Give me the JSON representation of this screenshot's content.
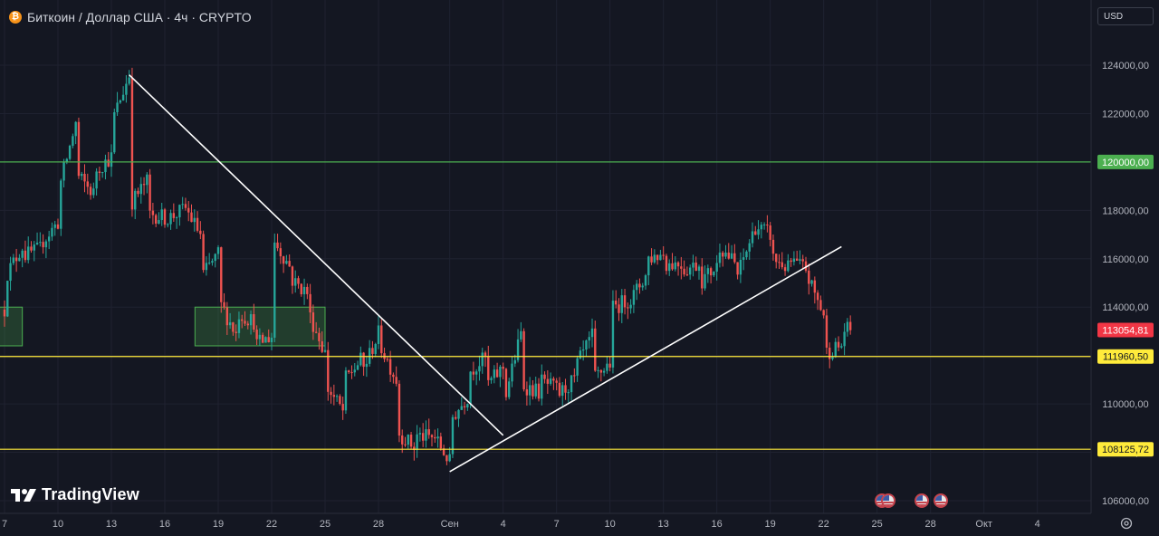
{
  "header": {
    "coin_symbol": "₿",
    "title": "Биткоин / Доллар США · 4ч · CRYPTO"
  },
  "toolbar": {
    "currency": "USD"
  },
  "branding": {
    "logo_text": "TradingView"
  },
  "icons": [
    "bitcoin-icon",
    "tradingview-logo-icon",
    "settings-gear-icon",
    "us-flag-event-icon"
  ],
  "colors": {
    "background": "#141722",
    "up": "#26a69a",
    "down": "#ef5350",
    "resistance_line": "#4caf50",
    "support_line": "#ffeb3b",
    "current_price_tag": "#f23645",
    "trend_line": "#ffffff"
  },
  "chart_data": {
    "type": "candlestick",
    "symbol": "BTCUSD",
    "interval": "4ч",
    "title": "Биткоин / Доллар США · 4ч · CRYPTO",
    "y_ticks": [
      106000,
      108000,
      110000,
      112000,
      114000,
      116000,
      118000,
      120000,
      122000,
      124000
    ],
    "y_tick_labels": [
      "106000,00",
      "108000,00",
      "110000,00",
      "112000,00",
      "114000,00",
      "116000,00",
      "118000,00",
      "120000,00",
      "122000,00",
      "124000,00"
    ],
    "ylim": [
      105500,
      126500
    ],
    "x_tick_labels": [
      "7",
      "10",
      "13",
      "16",
      "19",
      "22",
      "25",
      "28",
      "Сен",
      "4",
      "7",
      "10",
      "13",
      "16",
      "19",
      "22",
      "25",
      "28",
      "Окт",
      "4"
    ],
    "x_tick_dates": [
      "2025-08-07",
      "2025-08-10",
      "2025-08-13",
      "2025-08-16",
      "2025-08-19",
      "2025-08-22",
      "2025-08-25",
      "2025-08-28",
      "2025-09-01",
      "2025-09-04",
      "2025-09-07",
      "2025-09-10",
      "2025-09-13",
      "2025-09-16",
      "2025-09-19",
      "2025-09-22",
      "2025-09-25",
      "2025-09-28",
      "2025-10-01",
      "2025-10-04"
    ],
    "xlim": [
      "2025-08-07",
      "2025-10-06"
    ],
    "path_points": [
      [
        "2025-08-07",
        113900
      ],
      [
        "2025-08-07",
        115200
      ],
      [
        "2025-08-08",
        116500
      ],
      [
        "2025-08-08",
        116100
      ],
      [
        "2025-08-09",
        116400
      ],
      [
        "2025-08-09",
        116600
      ],
      [
        "2025-08-10",
        117500
      ],
      [
        "2025-08-10",
        118700
      ],
      [
        "2025-08-11",
        121600
      ],
      [
        "2025-08-11",
        119500
      ],
      [
        "2025-08-12",
        118700
      ],
      [
        "2025-08-12",
        119600
      ],
      [
        "2025-08-13",
        120200
      ],
      [
        "2025-08-13",
        121600
      ],
      [
        "2025-08-14",
        123600
      ],
      [
        "2025-08-14",
        121800
      ],
      [
        "2025-08-14",
        118200
      ],
      [
        "2025-08-15",
        119200
      ],
      [
        "2025-08-15",
        117900
      ],
      [
        "2025-08-16",
        117700
      ],
      [
        "2025-08-16",
        117600
      ],
      [
        "2025-08-17",
        118000
      ],
      [
        "2025-08-17",
        118300
      ],
      [
        "2025-08-18",
        117000
      ],
      [
        "2025-08-18",
        115200
      ],
      [
        "2025-08-19",
        116200
      ],
      [
        "2025-08-19",
        114300
      ],
      [
        "2025-08-20",
        112900
      ],
      [
        "2025-08-20",
        113800
      ],
      [
        "2025-08-21",
        113400
      ],
      [
        "2025-08-21",
        112400
      ],
      [
        "2025-08-22",
        112800
      ],
      [
        "2025-08-22",
        116900
      ],
      [
        "2025-08-23",
        115700
      ],
      [
        "2025-08-23",
        115200
      ],
      [
        "2025-08-24",
        114600
      ],
      [
        "2025-08-24",
        113900
      ],
      [
        "2025-08-25",
        112100
      ],
      [
        "2025-08-25",
        110800
      ],
      [
        "2025-08-26",
        109700
      ],
      [
        "2025-08-26",
        110900
      ],
      [
        "2025-08-27",
        111800
      ],
      [
        "2025-08-27",
        111200
      ],
      [
        "2025-08-28",
        112900
      ],
      [
        "2025-08-28",
        112600
      ],
      [
        "2025-08-29",
        111000
      ],
      [
        "2025-08-29",
        108900
      ],
      [
        "2025-08-30",
        108200
      ],
      [
        "2025-08-30",
        108700
      ],
      [
        "2025-08-31",
        108600
      ],
      [
        "2025-08-31",
        108800
      ],
      [
        "2025-09-01",
        107600
      ],
      [
        "2025-09-01",
        109300
      ],
      [
        "2025-09-02",
        110300
      ],
      [
        "2025-09-02",
        111300
      ],
      [
        "2025-09-03",
        111900
      ],
      [
        "2025-09-03",
        110700
      ],
      [
        "2025-09-04",
        111500
      ],
      [
        "2025-09-04",
        110000
      ],
      [
        "2025-09-05",
        112900
      ],
      [
        "2025-09-05",
        110800
      ],
      [
        "2025-09-06",
        110500
      ],
      [
        "2025-09-06",
        111000
      ],
      [
        "2025-09-07",
        110600
      ],
      [
        "2025-09-07",
        110300
      ],
      [
        "2025-09-08",
        111000
      ],
      [
        "2025-09-08",
        111400
      ],
      [
        "2025-09-09",
        112800
      ],
      [
        "2025-09-09",
        111000
      ],
      [
        "2025-09-10",
        111700
      ],
      [
        "2025-09-10",
        113900
      ],
      [
        "2025-09-11",
        114300
      ],
      [
        "2025-09-11",
        114100
      ],
      [
        "2025-09-12",
        115300
      ],
      [
        "2025-09-12",
        116000
      ],
      [
        "2025-09-13",
        116200
      ],
      [
        "2025-09-13",
        115800
      ],
      [
        "2025-09-14",
        115800
      ],
      [
        "2025-09-14",
        115500
      ],
      [
        "2025-09-15",
        115800
      ],
      [
        "2025-09-15",
        115000
      ],
      [
        "2025-09-16",
        115700
      ],
      [
        "2025-09-16",
        116700
      ],
      [
        "2025-09-17",
        115800
      ],
      [
        "2025-09-17",
        115000
      ],
      [
        "2025-09-18",
        117000
      ],
      [
        "2025-09-18",
        117400
      ],
      [
        "2025-09-19",
        117000
      ],
      [
        "2025-09-19",
        116100
      ],
      [
        "2025-09-20",
        115600
      ],
      [
        "2025-09-20",
        115900
      ],
      [
        "2025-09-21",
        115600
      ],
      [
        "2025-09-21",
        115400
      ],
      [
        "2025-09-22",
        113700
      ],
      [
        "2025-09-22",
        112100
      ],
      [
        "2025-09-23",
        112400
      ],
      [
        "2025-09-23",
        113050
      ]
    ],
    "horizontal_levels": [
      {
        "price": 120000,
        "label": "120000,00",
        "color": "#4caf50"
      },
      {
        "price": 111960.5,
        "label": "111960,50",
        "color": "#ffeb3b"
      },
      {
        "price": 108125.72,
        "label": "108125,72",
        "color": "#ffeb3b"
      }
    ],
    "last_price": {
      "price": 113054.81,
      "label": "113054,81",
      "color": "#f23645"
    },
    "trend_lines": [
      {
        "from": [
          "2025-08-14",
          123600
        ],
        "to": [
          "2025-09-04",
          108700
        ]
      },
      {
        "from": [
          "2025-09-01",
          107200
        ],
        "to": [
          "2025-09-23",
          116500
        ]
      }
    ],
    "zones": [
      {
        "from": "2025-08-07",
        "to": "2025-08-08",
        "top": 114000,
        "bottom": 112400
      },
      {
        "from": "2025-08-18",
        "to": "2025-08-25",
        "top": 114000,
        "bottom": 112400
      }
    ],
    "event_markers": [
      {
        "date": "2025-09-23",
        "icon": "us-flag-event-icon"
      },
      {
        "date": "2025-09-24",
        "icon": "us-flag-event-icon"
      },
      {
        "date": "2025-09-26",
        "icon": "us-flag-event-icon"
      },
      {
        "date": "2025-09-27",
        "icon": "us-flag-event-icon"
      }
    ],
    "grid": true,
    "legend": "none"
  }
}
